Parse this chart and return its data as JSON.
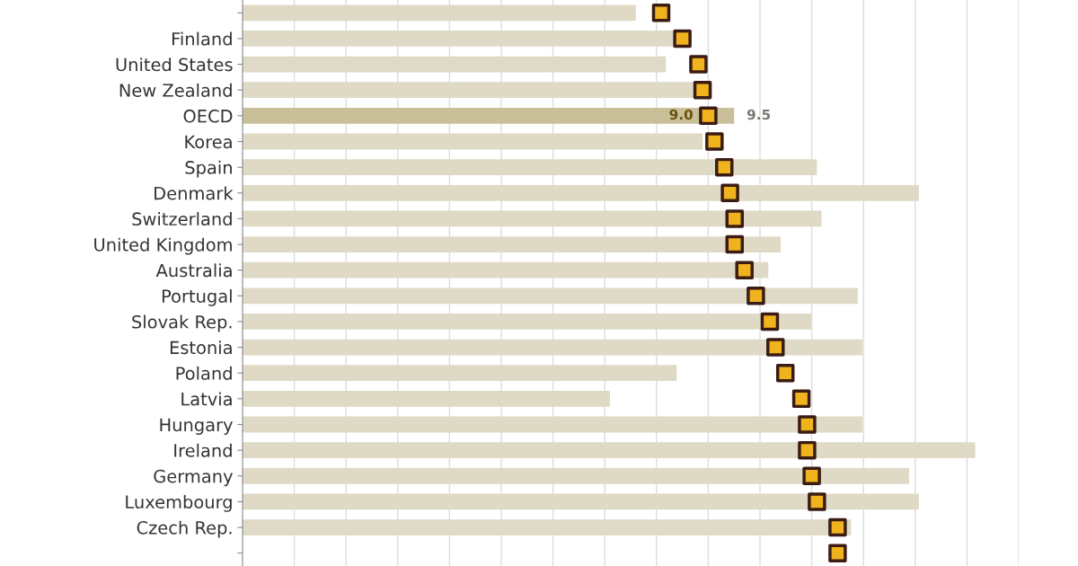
{
  "chart_data": {
    "type": "bar",
    "orientation": "horizontal",
    "categories": [
      null,
      "Finland",
      "United States",
      "New Zealand",
      "OECD",
      "Korea",
      "Spain",
      "Denmark",
      "Switzerland",
      "United Kingdom",
      "Australia",
      "Portugal",
      "Slovak Rep.",
      "Estonia",
      "Poland",
      "Latvia",
      "Hungary",
      "Ireland",
      "Germany",
      "Luxembourg",
      "Czech Rep.",
      null
    ],
    "series": [
      {
        "color": "#dedac6",
        "colors": [
          "#dedac6",
          "#dedac6",
          "#dedac6",
          "#dedac6",
          "#c9bf98",
          "#dedac6",
          "#dedac6",
          "#dedac6",
          "#dedac6",
          "#dedac6",
          "#dedac6",
          "#dedac6",
          "#dedac6",
          "#dedac6",
          "#dedac6",
          "#dedac6",
          "#dedac6",
          "#dedac6",
          "#dedac6",
          "#dedac6",
          "#dedac6",
          "#dedac6"
        ],
        "values": [
          7.6,
          8.33,
          8.18,
          8.74,
          9.5,
          8.89,
          11.1,
          13.07,
          11.19,
          10.4,
          10.16,
          11.89,
          10.99,
          11.98,
          8.39,
          7.1,
          11.98,
          14.16,
          12.88,
          13.07,
          11.76,
          null
        ],
        "value_labels": [
          null,
          null,
          null,
          null,
          "9.5",
          null,
          null,
          null,
          null,
          null,
          null,
          null,
          null,
          null,
          null,
          null,
          null,
          null,
          null,
          null,
          null,
          null
        ]
      },
      {
        "type": "scatter",
        "color": "#f0b31e",
        "values": [
          8.09,
          8.5,
          8.81,
          8.89,
          9.0,
          9.12,
          9.31,
          9.42,
          9.51,
          9.51,
          9.7,
          9.92,
          10.19,
          10.3,
          10.49,
          10.8,
          10.91,
          10.91,
          11.0,
          11.1,
          11.5,
          11.5
        ],
        "value_labels": [
          null,
          null,
          null,
          null,
          "9.0",
          null,
          null,
          null,
          null,
          null,
          null,
          null,
          null,
          null,
          null,
          null,
          null,
          null,
          null,
          null,
          null,
          null
        ]
      }
    ],
    "xlim": [
      0,
      15
    ],
    "xticks": [
      {
        "value": 1,
        "label": null
      },
      {
        "value": 2,
        "label": null
      },
      {
        "value": 3,
        "label": null
      },
      {
        "value": 4,
        "label": null
      },
      {
        "value": 5,
        "label": null
      },
      {
        "value": 6,
        "label": null
      },
      {
        "value": 7,
        "label": null
      },
      {
        "value": 8,
        "label": null
      },
      {
        "value": 9,
        "label": null
      },
      {
        "value": 10,
        "label": null
      },
      {
        "value": 11,
        "label": null
      },
      {
        "value": 12,
        "label": null
      },
      {
        "value": 13,
        "label": null
      },
      {
        "value": 14,
        "label": null
      },
      {
        "value": 15,
        "label": null
      }
    ],
    "tick_labels": "y",
    "grid": "x",
    "marker": "square"
  }
}
